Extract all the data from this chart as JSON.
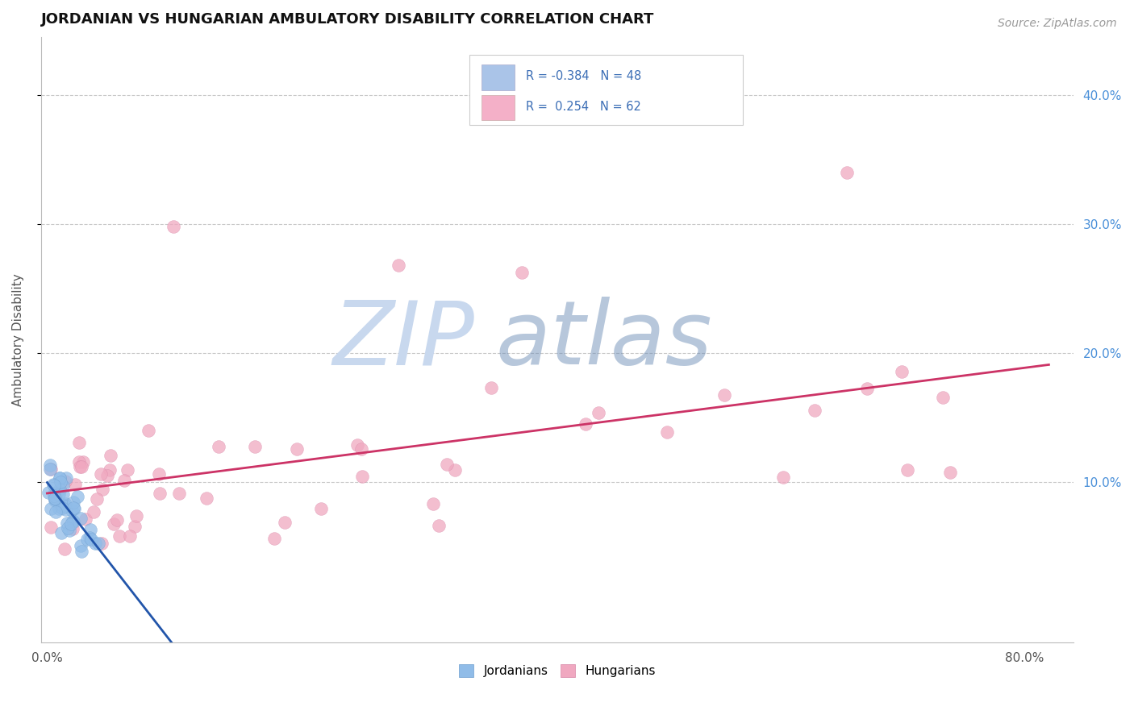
{
  "title": "JORDANIAN VS HUNGARIAN AMBULATORY DISABILITY CORRELATION CHART",
  "source": "Source: ZipAtlas.com",
  "ylabel": "Ambulatory Disability",
  "right_ytick_vals": [
    0.1,
    0.2,
    0.3,
    0.4
  ],
  "right_ytick_labels": [
    "10.0%",
    "20.0%",
    "30.0%",
    "40.0%"
  ],
  "jordanian_color": "#90bce8",
  "jordanian_edge": "#70a0d0",
  "hungarian_color": "#f0a8c0",
  "hungarian_edge": "#d888a8",
  "trend_jordanian_color": "#2255aa",
  "trend_hungarian_color": "#cc3366",
  "watermark_zip_color": "#c8d8ee",
  "watermark_atlas_color": "#7090b8",
  "background_color": "#ffffff",
  "grid_color": "#c8c8c8",
  "legend_box_color": "#aac4e8",
  "legend_pink_color": "#f4b0c8",
  "legend_text_color": "#3a6db5",
  "xlim": [
    -0.005,
    0.84
  ],
  "ylim": [
    -0.025,
    0.445
  ]
}
